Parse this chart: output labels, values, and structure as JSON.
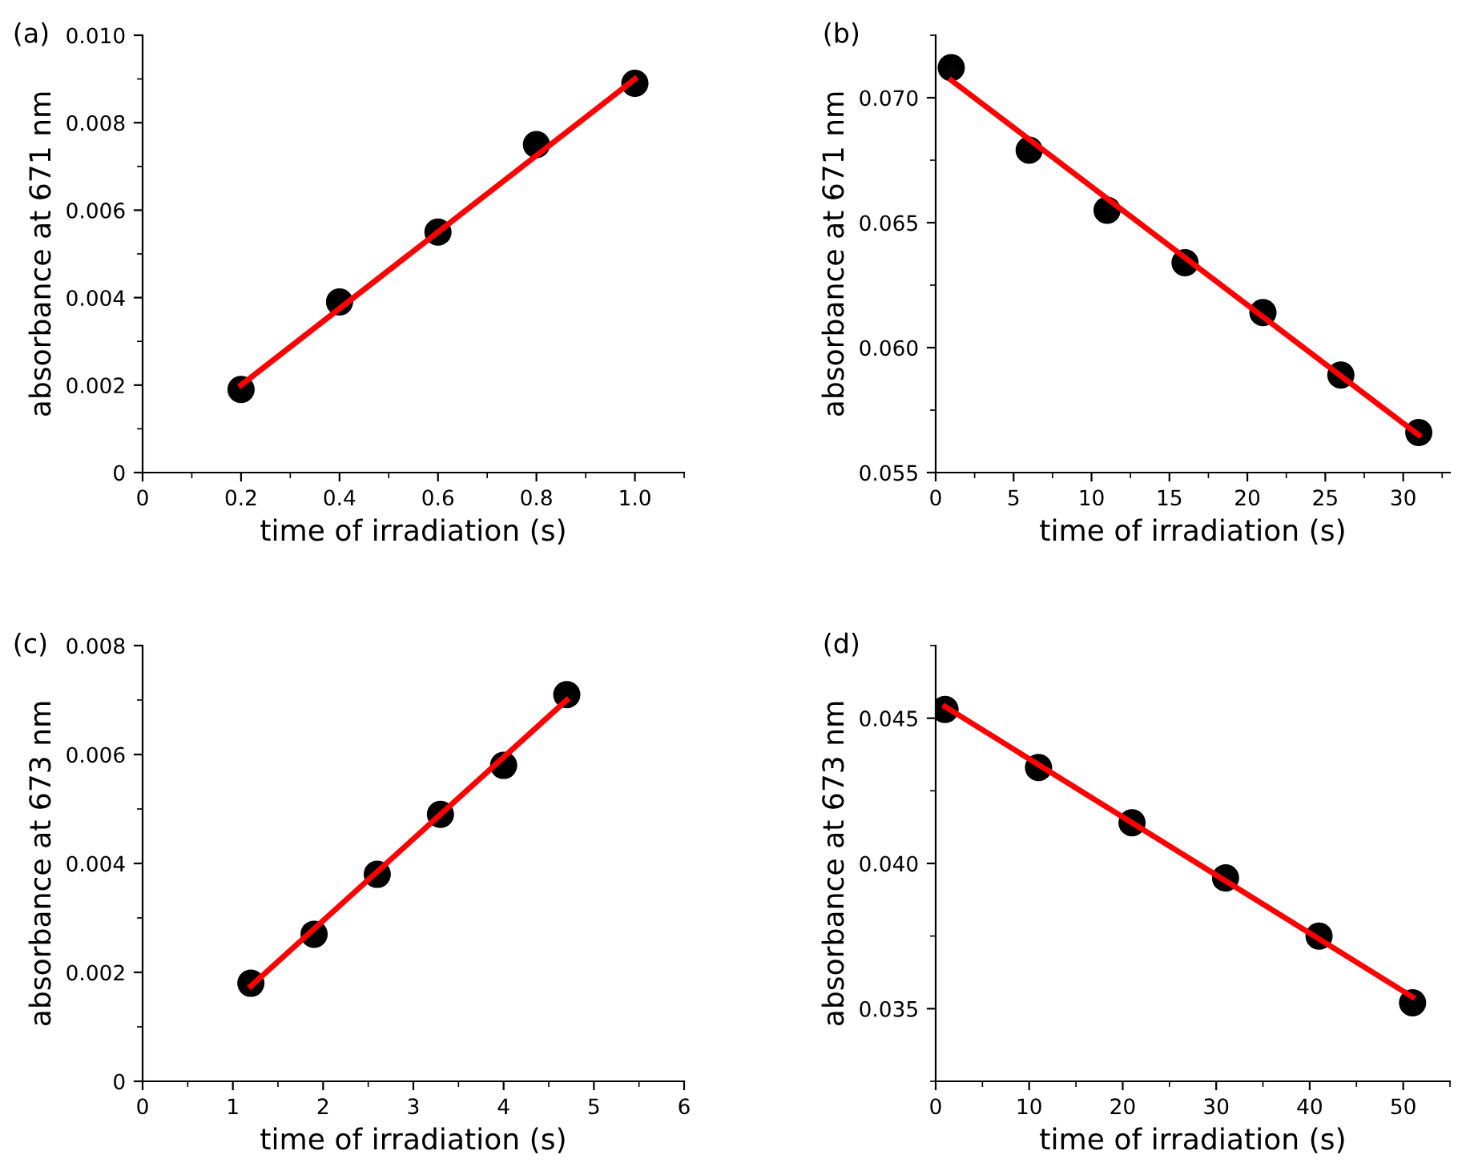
{
  "chart_data": [
    {
      "type": "scatter",
      "xlabel": "time of irradiation (s)",
      "ylabel": "absorbance at 671 nm",
      "annotations": [
        "(a)"
      ],
      "xlim": [
        0,
        1.1
      ],
      "ylim": [
        0,
        0.01
      ],
      "xticks": [
        0,
        0.2,
        0.4,
        0.6,
        0.8,
        {
          "value": 1.0,
          "label": "1.0"
        }
      ],
      "yticks": [
        0,
        0.002,
        0.004,
        0.006,
        0.008,
        {
          "value": 0.01,
          "label": "0.010"
        }
      ],
      "series": [
        {
          "marker": "circle",
          "color": "#000000",
          "x": [
            0.2,
            0.4,
            0.6,
            0.8,
            1.0
          ],
          "values": [
            0.0019,
            0.0039,
            0.0055,
            0.0075,
            0.0089
          ]
        },
        {
          "type": "line",
          "marker": "none",
          "line_style": "solid",
          "color": "#ff0000",
          "x": [
            0.2,
            1.0
          ],
          "values": [
            0.002,
            0.009
          ]
        }
      ]
    },
    {
      "type": "scatter",
      "xlabel": "time of irradiation (s)",
      "ylabel": "absorbance at 671 nm",
      "annotations": [
        "(b)"
      ],
      "xlim": [
        0,
        33
      ],
      "ylim": [
        0.055,
        0.0725
      ],
      "xticks": [
        0,
        5,
        10,
        15,
        20,
        25,
        30
      ],
      "yticks": [
        {
          "value": 0.055,
          "label": "0.055"
        },
        {
          "value": 0.06,
          "label": "0.060"
        },
        {
          "value": 0.065,
          "label": "0.065"
        },
        {
          "value": 0.07,
          "label": "0.070"
        }
      ],
      "series": [
        {
          "marker": "circle",
          "color": "#000000",
          "x": [
            1,
            6,
            11,
            16,
            21,
            26,
            31
          ],
          "values": [
            0.0712,
            0.0679,
            0.0655,
            0.0634,
            0.0614,
            0.0589,
            0.0566
          ]
        },
        {
          "type": "line",
          "marker": "none",
          "line_style": "solid",
          "color": "#ff0000",
          "x": [
            1,
            31
          ],
          "values": [
            0.0707,
            0.0565
          ]
        }
      ]
    },
    {
      "type": "scatter",
      "xlabel": "time of irradiation (s)",
      "ylabel": "absorbance at 673 nm",
      "annotations": [
        "(c)"
      ],
      "xlim": [
        0,
        6
      ],
      "ylim": [
        0,
        0.008
      ],
      "xticks": [
        0,
        1,
        2,
        3,
        4,
        5,
        6
      ],
      "yticks": [
        0,
        0.002,
        0.004,
        0.006,
        0.008
      ],
      "series": [
        {
          "marker": "circle",
          "color": "#000000",
          "x": [
            1.2,
            1.9,
            2.6,
            3.3,
            4.0,
            4.7
          ],
          "values": [
            0.0018,
            0.0027,
            0.0038,
            0.0049,
            0.0058,
            0.0071
          ]
        },
        {
          "type": "line",
          "marker": "none",
          "line_style": "solid",
          "color": "#ff0000",
          "x": [
            1.2,
            4.7
          ],
          "values": [
            0.00175,
            0.007
          ]
        }
      ]
    },
    {
      "type": "scatter",
      "xlabel": "time of irradiation (s)",
      "ylabel": "absorbance at 673 nm",
      "annotations": [
        "(d)"
      ],
      "xlim": [
        0,
        55
      ],
      "ylim": [
        0.0325,
        0.0475
      ],
      "xticks": [
        0,
        10,
        20,
        30,
        40,
        50
      ],
      "yticks": [
        {
          "value": 0.035,
          "label": "0.035"
        },
        {
          "value": 0.04,
          "label": "0.040"
        },
        {
          "value": 0.045,
          "label": "0.045"
        }
      ],
      "series": [
        {
          "marker": "circle",
          "color": "#000000",
          "x": [
            1,
            11,
            21,
            31,
            41,
            51
          ],
          "values": [
            0.0453,
            0.0433,
            0.0414,
            0.0395,
            0.0375,
            0.0352
          ]
        },
        {
          "type": "line",
          "marker": "none",
          "line_style": "solid",
          "color": "#ff0000",
          "x": [
            1,
            51
          ],
          "values": [
            0.0454,
            0.0354
          ]
        }
      ]
    }
  ]
}
